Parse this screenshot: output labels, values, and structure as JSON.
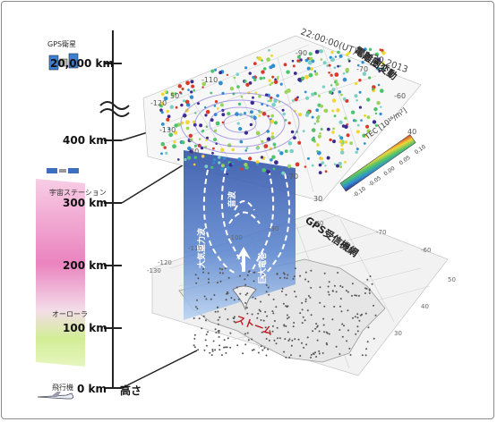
{
  "axis": {
    "ticks": [
      {
        "label": "20,000 km"
      },
      {
        "label": "400 km"
      },
      {
        "label": "300 km"
      },
      {
        "label": "200 km"
      },
      {
        "label": "100 km"
      },
      {
        "label": "0 km"
      }
    ],
    "height_label": "高さ"
  },
  "side_labels": {
    "gps_satellite": "GPS衛星",
    "space_station": "宇宙ステーション",
    "aurora": "オーローラ",
    "airplane": "飛行機"
  },
  "upper_map": {
    "title": "電離圏変動",
    "timestamp": "22:00:00(UT)  05/20 2013",
    "colorbar_title": "TEC [10¹⁶/m²]",
    "colorbar_ticks": [
      "-0.10",
      "-0.05",
      "0.00",
      "0.05",
      "0.10"
    ],
    "grid_labels": [
      "50",
      "-120",
      "-130",
      "-110",
      "30",
      "-90",
      "-70",
      "-60",
      "-70",
      "40",
      "30"
    ]
  },
  "middle": {
    "label_sound": "音波",
    "label_gravity_wave": "大気重力波",
    "label_tornado": "巨大竜巻",
    "label_storm": "ストーム"
  },
  "lower_map": {
    "title": "GPS受信機網",
    "grid_labels": [
      "-120",
      "-130",
      "-110",
      "-100",
      "-90",
      "-80",
      "-70",
      "-60",
      "50",
      "40",
      "30"
    ]
  },
  "colors": {
    "pink": "#e85aa8",
    "green": "#b9e46e",
    "blue": "#3d66b5",
    "storm": "#c0181e"
  }
}
